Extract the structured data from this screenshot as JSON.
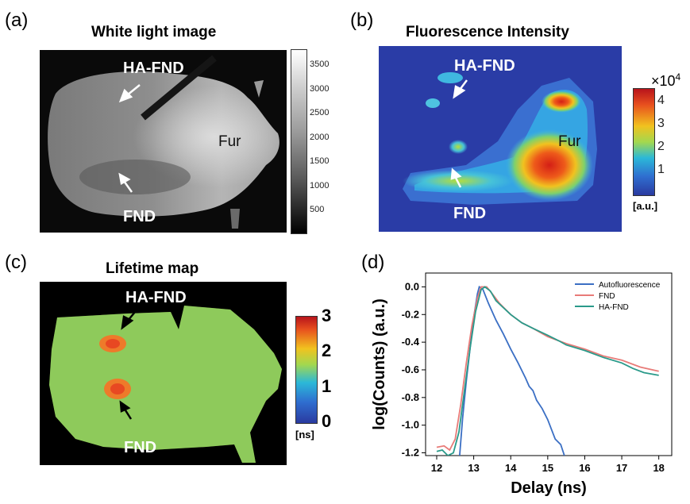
{
  "panel_a": {
    "letter": "(a)",
    "title": "White light image",
    "labels": {
      "ha_fnd": "HA-FND",
      "fur": "Fur",
      "fnd": "FND"
    },
    "colorbar_ticks": [
      "3500",
      "3000",
      "2500",
      "2000",
      "1500",
      "1000",
      "500"
    ]
  },
  "panel_b": {
    "letter": "(b)",
    "title": "Fluorescence Intensity",
    "labels": {
      "ha_fnd": "HA-FND",
      "fur": "Fur",
      "fnd": "FND"
    },
    "colorbar_ticks": [
      "4",
      "3",
      "2",
      "1"
    ],
    "colorbar_multiplier": "×10",
    "colorbar_exponent": "4",
    "colorbar_unit": "[a.u.]"
  },
  "panel_c": {
    "letter": "(c)",
    "title": "Lifetime map",
    "labels": {
      "ha_fnd": "HA-FND",
      "fnd": "FND"
    },
    "colorbar_ticks": [
      "3",
      "2",
      "1",
      "0"
    ],
    "colorbar_unit": "[ns]"
  },
  "panel_d": {
    "letter": "(d)"
  },
  "chart_data": {
    "type": "line",
    "xlabel": "Delay (ns)",
    "ylabel": "log(Counts) (a.u.)",
    "xlim": [
      11.7,
      18.35
    ],
    "ylim": [
      -1.22,
      0.1
    ],
    "xticks": [
      "12",
      "13",
      "14",
      "15",
      "16",
      "17",
      "18"
    ],
    "yticks": [
      "0.0",
      "-0.2",
      "-0.4",
      "-0.6",
      "-0.8",
      "-1.0",
      "-1.2"
    ],
    "legend_position": "top-right",
    "series": [
      {
        "name": "Autofluorescence",
        "color": "#3b6fc4",
        "points": [
          [
            12.62,
            -1.22
          ],
          [
            12.7,
            -0.95
          ],
          [
            12.8,
            -0.68
          ],
          [
            12.9,
            -0.45
          ],
          [
            13.0,
            -0.22
          ],
          [
            13.1,
            -0.05
          ],
          [
            13.15,
            0.0
          ],
          [
            13.25,
            -0.02
          ],
          [
            13.4,
            -0.12
          ],
          [
            13.6,
            -0.24
          ],
          [
            13.8,
            -0.34
          ],
          [
            14.0,
            -0.45
          ],
          [
            14.2,
            -0.55
          ],
          [
            14.4,
            -0.66
          ],
          [
            14.5,
            -0.72
          ],
          [
            14.6,
            -0.75
          ],
          [
            14.7,
            -0.82
          ],
          [
            14.85,
            -0.88
          ],
          [
            15.0,
            -0.96
          ],
          [
            15.1,
            -1.03
          ],
          [
            15.2,
            -1.1
          ],
          [
            15.35,
            -1.14
          ],
          [
            15.45,
            -1.22
          ]
        ]
      },
      {
        "name": "FND",
        "color": "#e87b78",
        "points": [
          [
            12.0,
            -1.16
          ],
          [
            12.2,
            -1.15
          ],
          [
            12.35,
            -1.18
          ],
          [
            12.5,
            -1.1
          ],
          [
            12.65,
            -0.85
          ],
          [
            12.8,
            -0.55
          ],
          [
            12.95,
            -0.28
          ],
          [
            13.1,
            -0.08
          ],
          [
            13.2,
            0.0
          ],
          [
            13.35,
            0.0
          ],
          [
            13.5,
            -0.05
          ],
          [
            13.7,
            -0.12
          ],
          [
            14.0,
            -0.2
          ],
          [
            14.3,
            -0.26
          ],
          [
            14.6,
            -0.3
          ],
          [
            15.0,
            -0.36
          ],
          [
            15.5,
            -0.41
          ],
          [
            16.0,
            -0.45
          ],
          [
            16.5,
            -0.5
          ],
          [
            17.0,
            -0.53
          ],
          [
            17.5,
            -0.58
          ],
          [
            18.0,
            -0.61
          ]
        ]
      },
      {
        "name": "HA-FND",
        "color": "#2a9a8a",
        "points": [
          [
            12.0,
            -1.19
          ],
          [
            12.15,
            -1.18
          ],
          [
            12.3,
            -1.22
          ],
          [
            12.45,
            -1.2
          ],
          [
            12.6,
            -1.05
          ],
          [
            12.75,
            -0.75
          ],
          [
            12.9,
            -0.45
          ],
          [
            13.05,
            -0.18
          ],
          [
            13.2,
            -0.02
          ],
          [
            13.3,
            0.0
          ],
          [
            13.45,
            -0.03
          ],
          [
            13.6,
            -0.1
          ],
          [
            13.8,
            -0.15
          ],
          [
            14.0,
            -0.2
          ],
          [
            14.3,
            -0.26
          ],
          [
            14.6,
            -0.3
          ],
          [
            15.0,
            -0.35
          ],
          [
            15.3,
            -0.39
          ],
          [
            15.5,
            -0.42
          ],
          [
            16.0,
            -0.46
          ],
          [
            16.5,
            -0.51
          ],
          [
            17.0,
            -0.55
          ],
          [
            17.3,
            -0.59
          ],
          [
            17.6,
            -0.62
          ],
          [
            18.0,
            -0.64
          ]
        ]
      }
    ]
  }
}
